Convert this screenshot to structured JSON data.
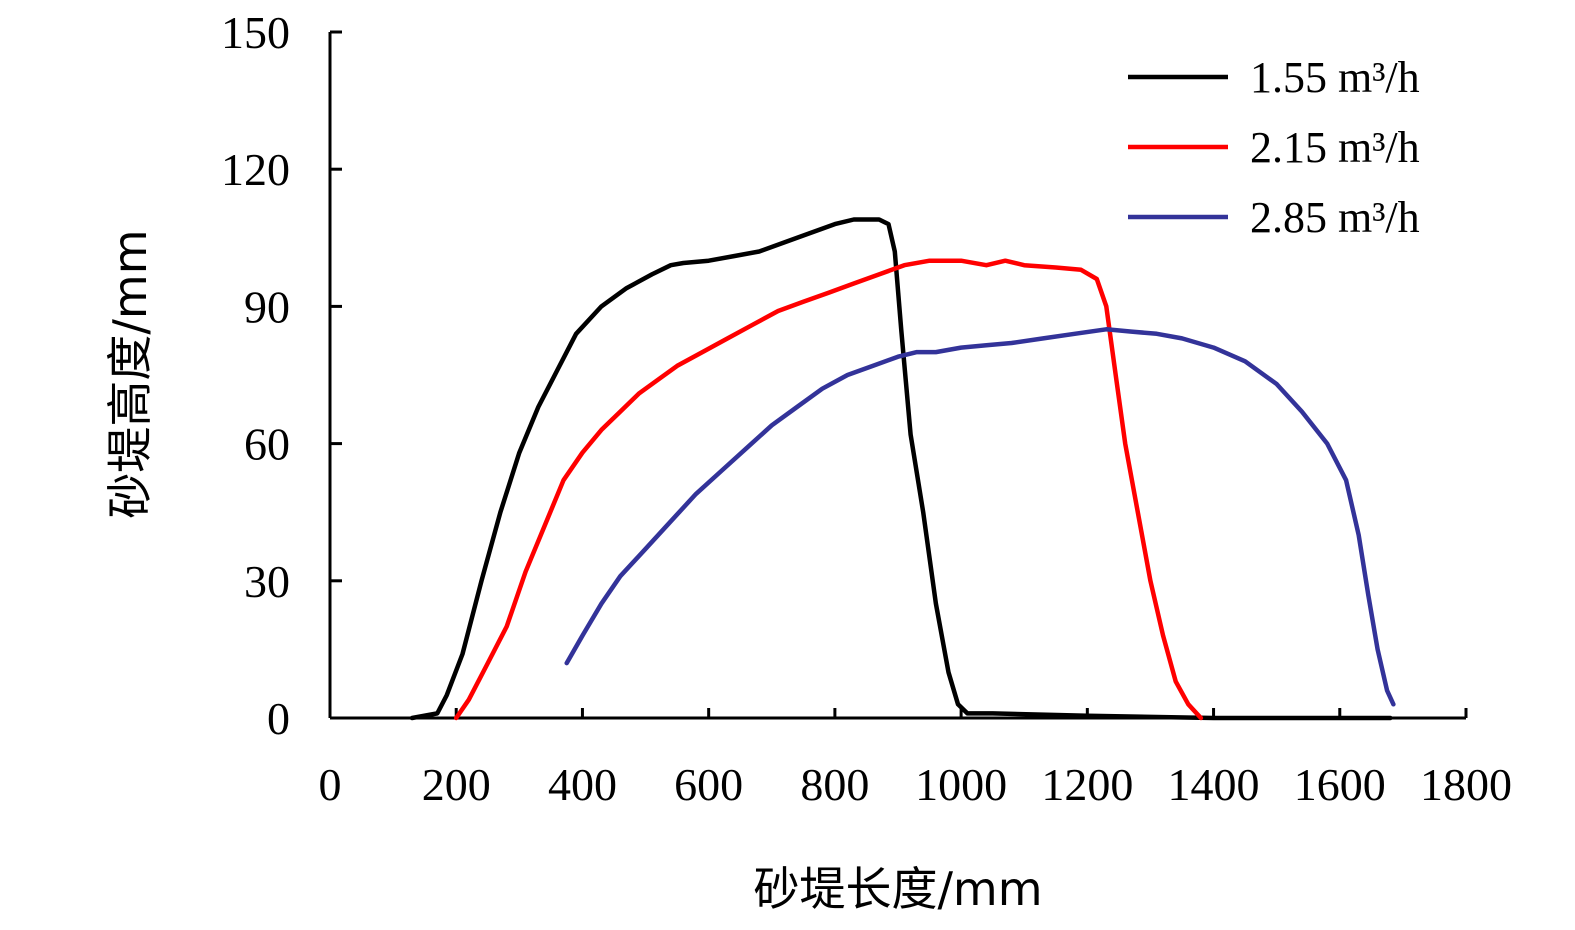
{
  "chart_data": {
    "type": "line",
    "title": "",
    "xlabel": "砂堤长度/mm",
    "ylabel": "砂堤高度/mm",
    "xlim": [
      0,
      1800
    ],
    "ylim": [
      0,
      150
    ],
    "xticks": [
      0,
      200,
      400,
      600,
      800,
      1000,
      1200,
      1400,
      1600,
      1800
    ],
    "yticks": [
      0,
      30,
      60,
      90,
      120,
      150
    ],
    "grid": false,
    "legend_position": "top-right",
    "series": [
      {
        "name": "1.55 m³/h",
        "color": "#000000",
        "points": [
          [
            130,
            0
          ],
          [
            170,
            1
          ],
          [
            185,
            5
          ],
          [
            210,
            14
          ],
          [
            240,
            30
          ],
          [
            270,
            45
          ],
          [
            300,
            58
          ],
          [
            330,
            68
          ],
          [
            360,
            76
          ],
          [
            390,
            84
          ],
          [
            430,
            90
          ],
          [
            470,
            94
          ],
          [
            510,
            97
          ],
          [
            540,
            99
          ],
          [
            560,
            99.5
          ],
          [
            600,
            100
          ],
          [
            640,
            101
          ],
          [
            680,
            102
          ],
          [
            720,
            104
          ],
          [
            760,
            106
          ],
          [
            800,
            108
          ],
          [
            830,
            109
          ],
          [
            870,
            109
          ],
          [
            885,
            108
          ],
          [
            895,
            102
          ],
          [
            905,
            85
          ],
          [
            920,
            62
          ],
          [
            940,
            45
          ],
          [
            960,
            25
          ],
          [
            980,
            10
          ],
          [
            995,
            3
          ],
          [
            1010,
            1
          ],
          [
            1050,
            1
          ],
          [
            1200,
            0.5
          ],
          [
            1400,
            0
          ],
          [
            1680,
            0
          ]
        ]
      },
      {
        "name": "2.15 m³/h",
        "color": "#ff0000",
        "points": [
          [
            200,
            0
          ],
          [
            220,
            4
          ],
          [
            250,
            12
          ],
          [
            280,
            20
          ],
          [
            310,
            32
          ],
          [
            340,
            42
          ],
          [
            370,
            52
          ],
          [
            400,
            58
          ],
          [
            430,
            63
          ],
          [
            460,
            67
          ],
          [
            490,
            71
          ],
          [
            520,
            74
          ],
          [
            550,
            77
          ],
          [
            590,
            80
          ],
          [
            630,
            83
          ],
          [
            670,
            86
          ],
          [
            710,
            89
          ],
          [
            750,
            91
          ],
          [
            790,
            93
          ],
          [
            830,
            95
          ],
          [
            870,
            97
          ],
          [
            910,
            99
          ],
          [
            950,
            100
          ],
          [
            1000,
            100
          ],
          [
            1040,
            99
          ],
          [
            1070,
            100
          ],
          [
            1100,
            99
          ],
          [
            1150,
            98.5
          ],
          [
            1190,
            98
          ],
          [
            1215,
            96
          ],
          [
            1230,
            90
          ],
          [
            1245,
            75
          ],
          [
            1260,
            60
          ],
          [
            1280,
            45
          ],
          [
            1300,
            30
          ],
          [
            1320,
            18
          ],
          [
            1340,
            8
          ],
          [
            1360,
            3
          ],
          [
            1380,
            0
          ]
        ]
      },
      {
        "name": "2.85 m³/h",
        "color": "#333399",
        "points": [
          [
            375,
            12
          ],
          [
            400,
            18
          ],
          [
            430,
            25
          ],
          [
            460,
            31
          ],
          [
            500,
            37
          ],
          [
            540,
            43
          ],
          [
            580,
            49
          ],
          [
            620,
            54
          ],
          [
            660,
            59
          ],
          [
            700,
            64
          ],
          [
            740,
            68
          ],
          [
            780,
            72
          ],
          [
            820,
            75
          ],
          [
            860,
            77
          ],
          [
            900,
            79
          ],
          [
            930,
            80
          ],
          [
            960,
            80
          ],
          [
            1000,
            81
          ],
          [
            1040,
            81.5
          ],
          [
            1080,
            82
          ],
          [
            1130,
            83
          ],
          [
            1180,
            84
          ],
          [
            1230,
            85
          ],
          [
            1270,
            84.5
          ],
          [
            1310,
            84
          ],
          [
            1350,
            83
          ],
          [
            1400,
            81
          ],
          [
            1450,
            78
          ],
          [
            1500,
            73
          ],
          [
            1540,
            67
          ],
          [
            1580,
            60
          ],
          [
            1610,
            52
          ],
          [
            1630,
            40
          ],
          [
            1645,
            27
          ],
          [
            1660,
            15
          ],
          [
            1675,
            6
          ],
          [
            1685,
            3
          ]
        ]
      }
    ]
  }
}
